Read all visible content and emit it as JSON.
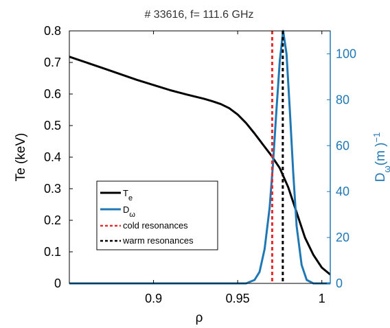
{
  "chart_data": {
    "type": "line",
    "title": "# 33616, f= 111.6 GHz",
    "xlabel": "ρ",
    "ylabel_left": "Te (keV)",
    "ylabel_right": {
      "main": "D",
      "sub": "ω",
      "rest": "(m )",
      "sup": "−1"
    },
    "xlim": [
      0.85,
      1.005
    ],
    "ylim_left": [
      0,
      0.8
    ],
    "ylim_right": [
      0,
      110
    ],
    "x_ticks": [
      0.9,
      0.95,
      1
    ],
    "x_tick_labels": [
      "0.9",
      "0.95",
      "1"
    ],
    "y_left_ticks": [
      0,
      0.1,
      0.2,
      0.3,
      0.4,
      0.5,
      0.6,
      0.7,
      0.8
    ],
    "y_left_tick_labels": [
      "0",
      "0.1",
      "0.2",
      "0.3",
      "0.4",
      "0.5",
      "0.6",
      "0.7",
      "0.8"
    ],
    "y_right_ticks": [
      0,
      20,
      40,
      60,
      80,
      100
    ],
    "y_right_tick_labels": [
      "0",
      "20",
      "40",
      "60",
      "80",
      "100"
    ],
    "grid": false,
    "legend_placement": "lower-left",
    "colors": {
      "te": "#000000",
      "dw": "#1f77b4",
      "cold": "#e8292c",
      "warm": "#000000",
      "right_axis": "#1f77b4"
    },
    "series": [
      {
        "key": "te",
        "legend_main": "T",
        "legend_sub": "e",
        "axis": "left",
        "x": [
          0.85,
          0.87,
          0.89,
          0.91,
          0.92,
          0.93,
          0.935,
          0.94,
          0.945,
          0.95,
          0.955,
          0.96,
          0.965,
          0.97,
          0.975,
          0.98,
          0.985,
          0.99,
          0.995,
          1.0,
          1.005
        ],
        "y": [
          0.718,
          0.682,
          0.645,
          0.612,
          0.598,
          0.585,
          0.577,
          0.568,
          0.555,
          0.535,
          0.508,
          0.475,
          0.44,
          0.405,
          0.365,
          0.305,
          0.225,
          0.145,
          0.09,
          0.05,
          0.028
        ]
      },
      {
        "key": "dw",
        "legend_main": "D",
        "legend_sub": "ω",
        "axis": "right",
        "x": [
          0.85,
          0.955,
          0.96,
          0.963,
          0.966,
          0.969,
          0.971,
          0.973,
          0.975,
          0.977,
          0.979,
          0.981,
          0.983,
          0.985,
          0.988,
          0.991,
          0.995,
          1.005
        ],
        "y": [
          0,
          0,
          1.5,
          5,
          15,
          33,
          52,
          75,
          97,
          110,
          100,
          75,
          48,
          25,
          8,
          1.5,
          0,
          0
        ]
      }
    ],
    "vlines": [
      {
        "key": "cold",
        "label": "cold resonances",
        "x": 0.9705
      },
      {
        "key": "warm",
        "label": "warm resonances",
        "x": 0.9768
      }
    ]
  }
}
